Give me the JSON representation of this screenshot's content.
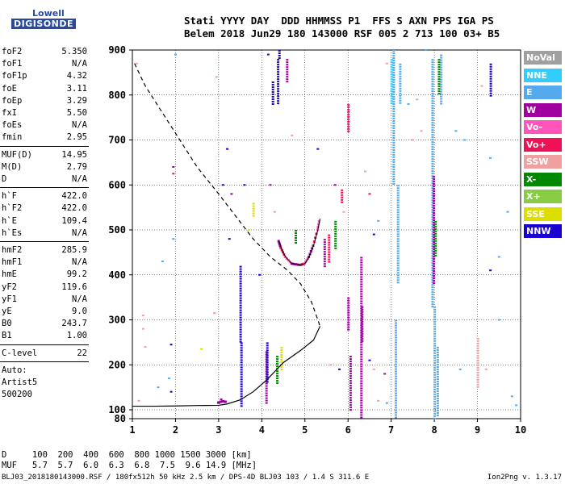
{
  "logo": {
    "line1": "Lowell",
    "line2": "DIGISONDE"
  },
  "header": {
    "line1": "Stati YYYY DAY  DDD HHMMSS P1  FFS S AXN PPS IGA PS",
    "line2": "Belem 2018 Jun29 180 143000 RSF 005 2 713 100 03+ B5"
  },
  "params": {
    "group1": [
      {
        "name": "foF2",
        "value": "5.350"
      },
      {
        "name": "foF1",
        "value": "N/A"
      },
      {
        "name": "foF1p",
        "value": "4.32"
      },
      {
        "name": "foE",
        "value": "3.11"
      },
      {
        "name": "foEp",
        "value": "3.29"
      },
      {
        "name": "fxI",
        "value": "5.50"
      },
      {
        "name": "foEs",
        "value": "N/A"
      },
      {
        "name": "fmin",
        "value": "2.95"
      }
    ],
    "group2": [
      {
        "name": "MUF(D)",
        "value": "14.95"
      },
      {
        "name": "M(D)",
        "value": "2.79"
      },
      {
        "name": "D",
        "value": "N/A"
      }
    ],
    "group3": [
      {
        "name": "h`F",
        "value": "422.0"
      },
      {
        "name": "h`F2",
        "value": "422.0"
      },
      {
        "name": "h`E",
        "value": "109.4"
      },
      {
        "name": "h`Es",
        "value": "N/A"
      }
    ],
    "group4": [
      {
        "name": "hmF2",
        "value": "285.9"
      },
      {
        "name": "hmF1",
        "value": "N/A"
      },
      {
        "name": "hmE",
        "value": "99.2"
      },
      {
        "name": "yF2",
        "value": "119.6"
      },
      {
        "name": "yF1",
        "value": "N/A"
      },
      {
        "name": "yE",
        "value": "9.0"
      },
      {
        "name": "B0",
        "value": "243.7"
      },
      {
        "name": "B1",
        "value": "1.00"
      }
    ],
    "clevel": {
      "name": "C-level",
      "value": "22"
    },
    "auto": [
      "Auto:",
      "Artist5",
      "500200"
    ]
  },
  "legend": [
    {
      "label": "NoVal",
      "color": "#a0a0a0"
    },
    {
      "label": "NNE",
      "color": "#33ccff"
    },
    {
      "label": "E",
      "color": "#55aaee"
    },
    {
      "label": "W",
      "color": "#a000a0"
    },
    {
      "label": "Vo-",
      "color": "#ff55bb"
    },
    {
      "label": "Vo+",
      "color": "#ee1155"
    },
    {
      "label": "SSW",
      "color": "#f0a0a0"
    },
    {
      "label": "X-",
      "color": "#008800"
    },
    {
      "label": "X+",
      "color": "#88cc44"
    },
    {
      "label": "SSE",
      "color": "#dddd00"
    },
    {
      "label": "NNW",
      "color": "#1a00d0"
    }
  ],
  "footer": {
    "d_row": "D     100  200  400  600  800 1000 1500 3000 [km]",
    "muf_row": "MUF   5.7  5.7  6.0  6.3  6.8  7.5  9.6 14.9 [MHz]",
    "file_info": "BLJ03_2018180143000.RSF / 180fx512h 50 kHz 2.5 km / DPS-4D BLJ03 103 / 1.4 S 311.6 E",
    "version": "Ion2Png v. 1.3.17"
  },
  "chart_data": {
    "type": "scatter",
    "xlim": [
      1,
      10
    ],
    "ylim": [
      80,
      900
    ],
    "x_ticks": [
      "1",
      "2",
      "3",
      "4",
      "5",
      "6",
      "7",
      "8",
      "9",
      "10"
    ],
    "y_ticks": [
      "80",
      "100",
      "200",
      "300",
      "400",
      "500",
      "600",
      "700",
      "800",
      "900"
    ],
    "grid": true,
    "profile_dashed": [
      [
        1.05,
        870
      ],
      [
        1.3,
        820
      ],
      [
        1.7,
        760
      ],
      [
        2.1,
        700
      ],
      [
        2.5,
        640
      ],
      [
        3.0,
        580
      ],
      [
        3.4,
        530
      ],
      [
        3.8,
        480
      ],
      [
        4.2,
        440
      ],
      [
        4.6,
        410
      ],
      [
        4.9,
        380
      ],
      [
        5.15,
        340
      ],
      [
        5.3,
        300
      ],
      [
        5.35,
        285.9
      ]
    ],
    "profile_solid": [
      [
        1.0,
        108
      ],
      [
        1.5,
        108
      ],
      [
        2.0,
        108.5
      ],
      [
        2.5,
        109.5
      ],
      [
        3.0,
        110
      ],
      [
        3.2,
        113
      ],
      [
        3.5,
        122
      ],
      [
        3.8,
        140
      ],
      [
        4.1,
        165
      ],
      [
        4.5,
        205
      ],
      [
        4.9,
        232
      ],
      [
        5.2,
        255
      ],
      [
        5.35,
        285.9
      ]
    ],
    "trace_f2": [
      [
        4.4,
        475
      ],
      [
        4.45,
        460
      ],
      [
        4.55,
        440
      ],
      [
        4.7,
        425
      ],
      [
        4.9,
        422
      ],
      [
        5.0,
        425
      ],
      [
        5.1,
        440
      ],
      [
        5.2,
        465
      ],
      [
        5.3,
        500
      ],
      [
        5.35,
        525
      ]
    ],
    "trace_e": [
      [
        3.0,
        115
      ],
      [
        3.05,
        117
      ],
      [
        3.1,
        118
      ],
      [
        3.15,
        117
      ]
    ],
    "spread_columns": [
      {
        "x": 4.37,
        "y0": 780,
        "y1": 880,
        "color": "#1a00d0"
      },
      {
        "x": 4.4,
        "y0": 880,
        "y1": 900,
        "color": "#1a00d0"
      },
      {
        "x": 4.58,
        "y0": 830,
        "y1": 880,
        "color": "#a000a0"
      },
      {
        "x": 3.5,
        "y0": 250,
        "y1": 420,
        "color": "#1a00d0"
      },
      {
        "x": 3.52,
        "y0": 110,
        "y1": 250,
        "color": "#1a00d0"
      },
      {
        "x": 4.1,
        "y0": 115,
        "y1": 230,
        "color": "#a000a0"
      },
      {
        "x": 4.12,
        "y0": 160,
        "y1": 250,
        "color": "#1a00d0"
      },
      {
        "x": 6.3,
        "y0": 80,
        "y1": 440,
        "color": "#a000a0"
      },
      {
        "x": 6.32,
        "y0": 250,
        "y1": 330,
        "color": "#a000a0"
      },
      {
        "x": 6.0,
        "y0": 280,
        "y1": 350,
        "color": "#a000a0"
      },
      {
        "x": 6.05,
        "y0": 100,
        "y1": 220,
        "color": "#a000a0"
      },
      {
        "x": 6.0,
        "y0": 720,
        "y1": 780,
        "color": "#ee1155"
      },
      {
        "x": 7.05,
        "y0": 600,
        "y1": 900,
        "color": "#55aaee"
      },
      {
        "x": 7.15,
        "y0": 380,
        "y1": 600,
        "color": "#55aaee"
      },
      {
        "x": 7.1,
        "y0": 80,
        "y1": 300,
        "color": "#55aaee"
      },
      {
        "x": 7.0,
        "y0": 780,
        "y1": 880,
        "color": "#33ccff"
      },
      {
        "x": 7.2,
        "y0": 780,
        "y1": 870,
        "color": "#55aaee"
      },
      {
        "x": 8.0,
        "y0": 80,
        "y1": 330,
        "color": "#55aaee"
      },
      {
        "x": 7.95,
        "y0": 330,
        "y1": 880,
        "color": "#55aaee"
      },
      {
        "x": 8.07,
        "y0": 85,
        "y1": 240,
        "color": "#55aaee"
      },
      {
        "x": 8.15,
        "y0": 780,
        "y1": 890,
        "color": "#55aaee"
      },
      {
        "x": 8.1,
        "y0": 800,
        "y1": 880,
        "color": "#008800"
      },
      {
        "x": 7.98,
        "y0": 380,
        "y1": 620,
        "color": "#a000a0"
      },
      {
        "x": 8.02,
        "y0": 440,
        "y1": 520,
        "color": "#008800"
      },
      {
        "x": 9.3,
        "y0": 800,
        "y1": 870,
        "color": "#1a00d0"
      },
      {
        "x": 9.0,
        "y0": 150,
        "y1": 260,
        "color": "#f0a0a0"
      },
      {
        "x": 5.45,
        "y0": 420,
        "y1": 480,
        "color": "#a000a0"
      },
      {
        "x": 5.55,
        "y0": 430,
        "y1": 490,
        "color": "#ee1155"
      },
      {
        "x": 5.7,
        "y0": 460,
        "y1": 520,
        "color": "#008800"
      },
      {
        "x": 4.35,
        "y0": 160,
        "y1": 220,
        "color": "#008800"
      },
      {
        "x": 4.45,
        "y0": 190,
        "y1": 240,
        "color": "#dddd00"
      },
      {
        "x": 3.8,
        "y0": 530,
        "y1": 560,
        "color": "#dddd00"
      },
      {
        "x": 3.05,
        "y0": 120,
        "y1": 125,
        "color": "#a000a0"
      },
      {
        "x": 4.25,
        "y0": 780,
        "y1": 830,
        "color": "#1a00d0"
      },
      {
        "x": 5.85,
        "y0": 560,
        "y1": 590,
        "color": "#ee1155"
      },
      {
        "x": 4.78,
        "y0": 470,
        "y1": 500,
        "color": "#008800"
      }
    ],
    "scatter_points": [
      {
        "x": 1.1,
        "y": 870,
        "color": "#f0a0a0"
      },
      {
        "x": 1.25,
        "y": 280,
        "color": "#f0a0a0"
      },
      {
        "x": 1.25,
        "y": 310,
        "color": "#f0a0a0"
      },
      {
        "x": 1.3,
        "y": 240,
        "color": "#f0a0a0"
      },
      {
        "x": 1.15,
        "y": 120,
        "color": "#f0a0a0"
      },
      {
        "x": 1.6,
        "y": 150,
        "color": "#55aaee"
      },
      {
        "x": 1.85,
        "y": 170,
        "color": "#55aaee"
      },
      {
        "x": 1.9,
        "y": 140,
        "color": "#1a00d0"
      },
      {
        "x": 1.95,
        "y": 480,
        "color": "#55aaee"
      },
      {
        "x": 1.95,
        "y": 640,
        "color": "#a000a0"
      },
      {
        "x": 1.95,
        "y": 625,
        "color": "#ee1155"
      },
      {
        "x": 2.0,
        "y": 890,
        "color": "#55aaee"
      },
      {
        "x": 1.7,
        "y": 430,
        "color": "#55aaee"
      },
      {
        "x": 1.9,
        "y": 245,
        "color": "#1a00d0"
      },
      {
        "x": 2.6,
        "y": 235,
        "color": "#dddd00"
      },
      {
        "x": 2.9,
        "y": 315,
        "color": "#f0a0a0"
      },
      {
        "x": 2.95,
        "y": 840,
        "color": "#f0a0a0"
      },
      {
        "x": 3.1,
        "y": 600,
        "color": "#1a00d0"
      },
      {
        "x": 3.2,
        "y": 680,
        "color": "#1a00d0"
      },
      {
        "x": 3.25,
        "y": 480,
        "color": "#1a00d0"
      },
      {
        "x": 3.3,
        "y": 580,
        "color": "#a000a0"
      },
      {
        "x": 3.6,
        "y": 600,
        "color": "#1a00d0"
      },
      {
        "x": 3.7,
        "y": 500,
        "color": "#dddd00"
      },
      {
        "x": 3.95,
        "y": 400,
        "color": "#1a00d0"
      },
      {
        "x": 4.15,
        "y": 890,
        "color": "#1a00d0"
      },
      {
        "x": 4.2,
        "y": 600,
        "color": "#a000a0"
      },
      {
        "x": 4.3,
        "y": 540,
        "color": "#f0a0a0"
      },
      {
        "x": 4.7,
        "y": 710,
        "color": "#f0a0a0"
      },
      {
        "x": 5.3,
        "y": 680,
        "color": "#1a00d0"
      },
      {
        "x": 5.7,
        "y": 600,
        "color": "#a000a0"
      },
      {
        "x": 5.9,
        "y": 540,
        "color": "#f0a0a0"
      },
      {
        "x": 6.4,
        "y": 630,
        "color": "#f0a0a0"
      },
      {
        "x": 6.5,
        "y": 580,
        "color": "#ee1155"
      },
      {
        "x": 6.6,
        "y": 490,
        "color": "#1a00d0"
      },
      {
        "x": 6.7,
        "y": 520,
        "color": "#55aaee"
      },
      {
        "x": 6.85,
        "y": 180,
        "color": "#a000a0"
      },
      {
        "x": 6.9,
        "y": 870,
        "color": "#f0a0a0"
      },
      {
        "x": 7.4,
        "y": 780,
        "color": "#55aaee"
      },
      {
        "x": 7.5,
        "y": 700,
        "color": "#f0a0a0"
      },
      {
        "x": 7.6,
        "y": 790,
        "color": "#f0a0a0"
      },
      {
        "x": 7.7,
        "y": 720,
        "color": "#f0a0a0"
      },
      {
        "x": 7.8,
        "y": 900,
        "color": "#55aaee"
      },
      {
        "x": 8.5,
        "y": 720,
        "color": "#55aaee"
      },
      {
        "x": 8.7,
        "y": 700,
        "color": "#55aaee"
      },
      {
        "x": 9.1,
        "y": 820,
        "color": "#f0a0a0"
      },
      {
        "x": 9.3,
        "y": 660,
        "color": "#55aaee"
      },
      {
        "x": 9.3,
        "y": 410,
        "color": "#1a00d0"
      },
      {
        "x": 9.5,
        "y": 440,
        "color": "#55aaee"
      },
      {
        "x": 9.5,
        "y": 300,
        "color": "#55aaee"
      },
      {
        "x": 9.7,
        "y": 540,
        "color": "#55aaee"
      },
      {
        "x": 9.8,
        "y": 130,
        "color": "#55aaee"
      },
      {
        "x": 9.9,
        "y": 110,
        "color": "#55aaee"
      },
      {
        "x": 5.6,
        "y": 200,
        "color": "#f0a0a0"
      },
      {
        "x": 5.8,
        "y": 190,
        "color": "#1a00d0"
      },
      {
        "x": 6.5,
        "y": 210,
        "color": "#1a00d0"
      },
      {
        "x": 6.6,
        "y": 190,
        "color": "#f0a0a0"
      },
      {
        "x": 6.7,
        "y": 120,
        "color": "#f0a0a0"
      },
      {
        "x": 6.9,
        "y": 115,
        "color": "#55aaee"
      },
      {
        "x": 8.6,
        "y": 190,
        "color": "#55aaee"
      },
      {
        "x": 9.2,
        "y": 190,
        "color": "#f0a0a0"
      }
    ]
  }
}
